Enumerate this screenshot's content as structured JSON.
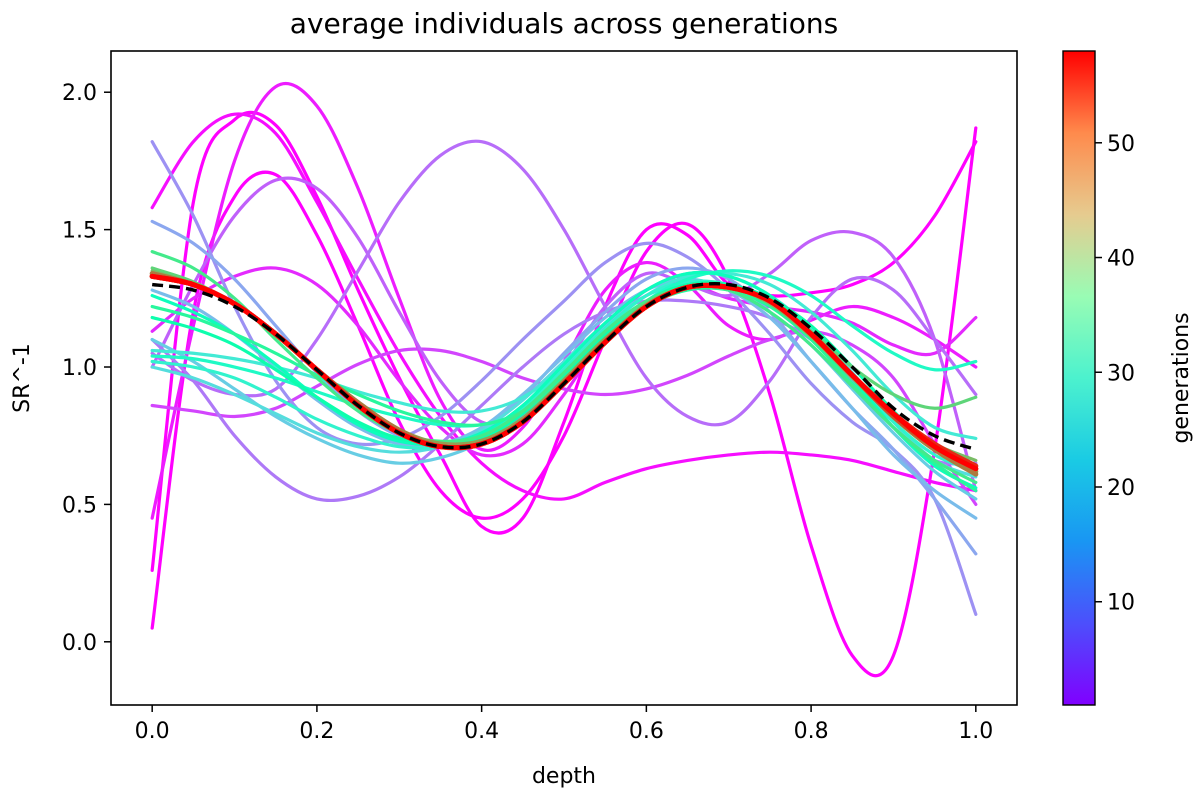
{
  "chart_data": {
    "type": "line",
    "title": "average individuals across generations",
    "xlabel": "depth",
    "ylabel": "SR^-1",
    "xlim": [
      -0.05,
      1.05
    ],
    "ylim": [
      -0.23,
      2.15
    ],
    "xticks": [
      "0.0",
      "0.2",
      "0.4",
      "0.6",
      "0.8",
      "1.0"
    ],
    "yticks": [
      "0.0",
      "0.5",
      "1.0",
      "1.5",
      "2.0"
    ],
    "grid": false,
    "colorbar": {
      "label": "generations",
      "range": [
        1,
        58
      ],
      "ticks": [
        "10",
        "20",
        "30",
        "40",
        "50"
      ],
      "colormap": "rainbow"
    },
    "x": [
      0.0,
      0.05,
      0.1,
      0.15,
      0.2,
      0.25,
      0.3,
      0.35,
      0.4,
      0.45,
      0.5,
      0.55,
      0.6,
      0.65,
      0.7,
      0.75,
      0.8,
      0.85,
      0.9,
      0.95,
      1.0
    ],
    "reference": {
      "style": "dashed",
      "color": "#000000",
      "values": [
        1.3,
        1.28,
        1.22,
        1.12,
        0.99,
        0.86,
        0.76,
        0.71,
        0.72,
        0.8,
        0.94,
        1.09,
        1.22,
        1.29,
        1.3,
        1.25,
        1.14,
        1.0,
        0.85,
        0.75,
        0.7
      ]
    },
    "series": [
      {
        "generation": 1,
        "values": [
          0.05,
          1.2,
          1.62,
          1.7,
          1.48,
          1.15,
          0.8,
          0.55,
          0.45,
          0.52,
          0.75,
          1.1,
          1.42,
          1.52,
          1.32,
          0.9,
          0.35,
          -0.05,
          -0.05,
          0.7,
          1.87
        ]
      },
      {
        "generation": 1,
        "values": [
          0.26,
          1.6,
          1.9,
          1.88,
          1.62,
          1.28,
          0.96,
          0.68,
          0.42,
          0.45,
          0.8,
          1.22,
          1.5,
          1.48,
          1.3,
          1.26,
          1.27,
          1.3,
          1.38,
          1.55,
          1.82
        ]
      },
      {
        "generation": 2,
        "values": [
          1.58,
          1.82,
          1.92,
          1.85,
          1.6,
          1.32,
          1.05,
          0.82,
          0.65,
          0.55,
          0.52,
          0.58,
          0.63,
          0.66,
          0.68,
          0.69,
          0.68,
          0.66,
          0.62,
          0.58,
          0.55
        ]
      },
      {
        "generation": 3,
        "values": [
          0.45,
          1.15,
          1.75,
          2.02,
          1.95,
          1.65,
          1.25,
          0.88,
          0.7,
          0.78,
          1.02,
          1.28,
          1.38,
          1.3,
          1.15,
          1.1,
          1.17,
          1.22,
          1.18,
          1.1,
          1.0
        ]
      },
      {
        "generation": 4,
        "values": [
          1.13,
          1.25,
          1.33,
          1.36,
          1.3,
          1.15,
          0.95,
          0.78,
          0.68,
          0.72,
          0.9,
          1.12,
          1.28,
          1.3,
          1.25,
          1.22,
          1.2,
          1.16,
          1.08,
          1.05,
          1.18
        ]
      },
      {
        "generation": 6,
        "values": [
          0.86,
          0.84,
          0.82,
          0.85,
          0.93,
          1.01,
          1.06,
          1.06,
          1.02,
          0.96,
          0.92,
          0.9,
          0.92,
          0.97,
          1.04,
          1.1,
          1.13,
          1.08,
          0.96,
          0.72,
          0.5
        ]
      },
      {
        "generation": 8,
        "values": [
          1.0,
          1.3,
          1.55,
          1.68,
          1.65,
          1.47,
          1.2,
          0.95,
          0.8,
          0.82,
          1.0,
          1.22,
          1.34,
          1.3,
          1.26,
          1.34,
          1.46,
          1.49,
          1.4,
          1.1,
          0.55
        ]
      },
      {
        "generation": 9,
        "values": [
          1.05,
          0.95,
          0.9,
          0.92,
          1.1,
          1.35,
          1.6,
          1.77,
          1.82,
          1.72,
          1.5,
          1.22,
          0.96,
          0.82,
          0.8,
          0.95,
          1.18,
          1.32,
          1.28,
          1.1,
          0.9
        ]
      },
      {
        "generation": 10,
        "values": [
          1.1,
          0.95,
          0.75,
          0.6,
          0.52,
          0.53,
          0.6,
          0.72,
          0.86,
          1.0,
          1.12,
          1.2,
          1.24,
          1.24,
          1.22,
          1.18,
          1.1,
          0.95,
          0.78,
          0.66,
          0.65
        ]
      },
      {
        "generation": 12,
        "values": [
          1.82,
          1.55,
          1.22,
          0.95,
          0.78,
          0.72,
          0.74,
          0.82,
          0.95,
          1.1,
          1.24,
          1.38,
          1.45,
          1.4,
          1.28,
          1.12,
          0.94,
          0.8,
          0.7,
          0.52,
          0.1
        ]
      },
      {
        "generation": 14,
        "values": [
          1.53,
          1.45,
          1.32,
          1.15,
          0.98,
          0.84,
          0.75,
          0.72,
          0.77,
          0.89,
          1.05,
          1.2,
          1.32,
          1.36,
          1.32,
          1.2,
          1.02,
          0.85,
          0.7,
          0.52,
          0.32
        ]
      },
      {
        "generation": 16,
        "values": [
          1.28,
          1.22,
          1.12,
          1.0,
          0.88,
          0.78,
          0.72,
          0.72,
          0.78,
          0.9,
          1.04,
          1.18,
          1.28,
          1.32,
          1.28,
          1.18,
          1.02,
          0.85,
          0.68,
          0.55,
          0.45
        ]
      },
      {
        "generation": 18,
        "values": [
          1.1,
          1.02,
          0.92,
          0.82,
          0.74,
          0.68,
          0.65,
          0.67,
          0.73,
          0.85,
          1.0,
          1.15,
          1.26,
          1.3,
          1.28,
          1.2,
          1.08,
          0.92,
          0.76,
          0.62,
          0.52
        ]
      },
      {
        "generation": 20,
        "values": [
          1.0,
          0.96,
          0.9,
          0.83,
          0.76,
          0.71,
          0.69,
          0.71,
          0.77,
          0.88,
          1.02,
          1.16,
          1.28,
          1.34,
          1.33,
          1.26,
          1.14,
          0.98,
          0.8,
          0.66,
          0.6
        ]
      },
      {
        "generation": 22,
        "values": [
          1.06,
          1.05,
          1.03,
          1.0,
          0.96,
          0.91,
          0.87,
          0.84,
          0.84,
          0.89,
          1.0,
          1.14,
          1.26,
          1.33,
          1.34,
          1.3,
          1.2,
          1.06,
          0.9,
          0.78,
          0.74
        ]
      },
      {
        "generation": 24,
        "values": [
          1.02,
          1.0,
          0.96,
          0.89,
          0.81,
          0.75,
          0.71,
          0.71,
          0.75,
          0.85,
          0.99,
          1.14,
          1.26,
          1.31,
          1.3,
          1.24,
          1.12,
          0.96,
          0.8,
          0.68,
          0.62
        ]
      },
      {
        "generation": 26,
        "values": [
          1.04,
          1.03,
          1.0,
          0.96,
          0.91,
          0.86,
          0.82,
          0.79,
          0.79,
          0.84,
          0.96,
          1.11,
          1.24,
          1.32,
          1.35,
          1.33,
          1.26,
          1.15,
          1.05,
          0.99,
          1.02
        ]
      },
      {
        "generation": 28,
        "values": [
          1.26,
          1.2,
          1.12,
          1.01,
          0.89,
          0.79,
          0.73,
          0.72,
          0.76,
          0.86,
          1.01,
          1.16,
          1.28,
          1.34,
          1.33,
          1.26,
          1.13,
          0.96,
          0.78,
          0.64,
          0.56
        ]
      },
      {
        "generation": 31,
        "values": [
          1.18,
          1.14,
          1.08,
          0.99,
          0.89,
          0.8,
          0.74,
          0.72,
          0.74,
          0.83,
          0.97,
          1.12,
          1.24,
          1.3,
          1.3,
          1.25,
          1.15,
          1.0,
          0.84,
          0.7,
          0.62
        ]
      },
      {
        "generation": 34,
        "values": [
          1.22,
          1.18,
          1.12,
          1.05,
          0.97,
          0.9,
          0.84,
          0.8,
          0.79,
          0.84,
          0.96,
          1.1,
          1.22,
          1.28,
          1.28,
          1.22,
          1.1,
          0.94,
          0.78,
          0.65,
          0.55
        ]
      },
      {
        "generation": 37,
        "values": [
          1.42,
          1.36,
          1.25,
          1.1,
          0.96,
          0.84,
          0.76,
          0.73,
          0.75,
          0.84,
          0.98,
          1.13,
          1.24,
          1.29,
          1.28,
          1.2,
          1.08,
          0.93,
          0.78,
          0.66,
          0.58
        ]
      },
      {
        "generation": 40,
        "values": [
          1.36,
          1.31,
          1.23,
          1.12,
          0.99,
          0.86,
          0.77,
          0.72,
          0.73,
          0.81,
          0.95,
          1.1,
          1.23,
          1.29,
          1.29,
          1.24,
          1.13,
          1.0,
          0.9,
          0.85,
          0.89
        ]
      },
      {
        "generation": 43,
        "values": [
          1.35,
          1.3,
          1.23,
          1.12,
          0.99,
          0.87,
          0.77,
          0.72,
          0.73,
          0.81,
          0.95,
          1.1,
          1.23,
          1.29,
          1.29,
          1.23,
          1.11,
          0.96,
          0.82,
          0.72,
          0.66
        ]
      },
      {
        "generation": 46,
        "values": [
          1.33,
          1.3,
          1.23,
          1.12,
          0.99,
          0.87,
          0.77,
          0.72,
          0.73,
          0.81,
          0.95,
          1.1,
          1.22,
          1.29,
          1.29,
          1.24,
          1.12,
          0.97,
          0.82,
          0.7,
          0.62
        ]
      },
      {
        "generation": 49,
        "values": [
          1.34,
          1.3,
          1.23,
          1.12,
          0.99,
          0.87,
          0.77,
          0.71,
          0.72,
          0.8,
          0.94,
          1.09,
          1.22,
          1.29,
          1.29,
          1.24,
          1.12,
          0.97,
          0.82,
          0.7,
          0.61
        ]
      },
      {
        "generation": 52,
        "values": [
          1.33,
          1.3,
          1.23,
          1.12,
          0.99,
          0.86,
          0.76,
          0.71,
          0.72,
          0.8,
          0.94,
          1.09,
          1.22,
          1.29,
          1.29,
          1.24,
          1.12,
          0.97,
          0.82,
          0.71,
          0.63
        ]
      },
      {
        "generation": 55,
        "values": [
          1.33,
          1.3,
          1.23,
          1.12,
          0.99,
          0.86,
          0.76,
          0.71,
          0.72,
          0.8,
          0.94,
          1.09,
          1.22,
          1.29,
          1.29,
          1.24,
          1.12,
          0.97,
          0.83,
          0.72,
          0.64
        ]
      },
      {
        "generation": 58,
        "values": [
          1.33,
          1.3,
          1.23,
          1.12,
          0.99,
          0.86,
          0.76,
          0.71,
          0.72,
          0.8,
          0.94,
          1.09,
          1.22,
          1.29,
          1.29,
          1.24,
          1.12,
          0.97,
          0.83,
          0.71,
          0.63
        ]
      }
    ]
  }
}
